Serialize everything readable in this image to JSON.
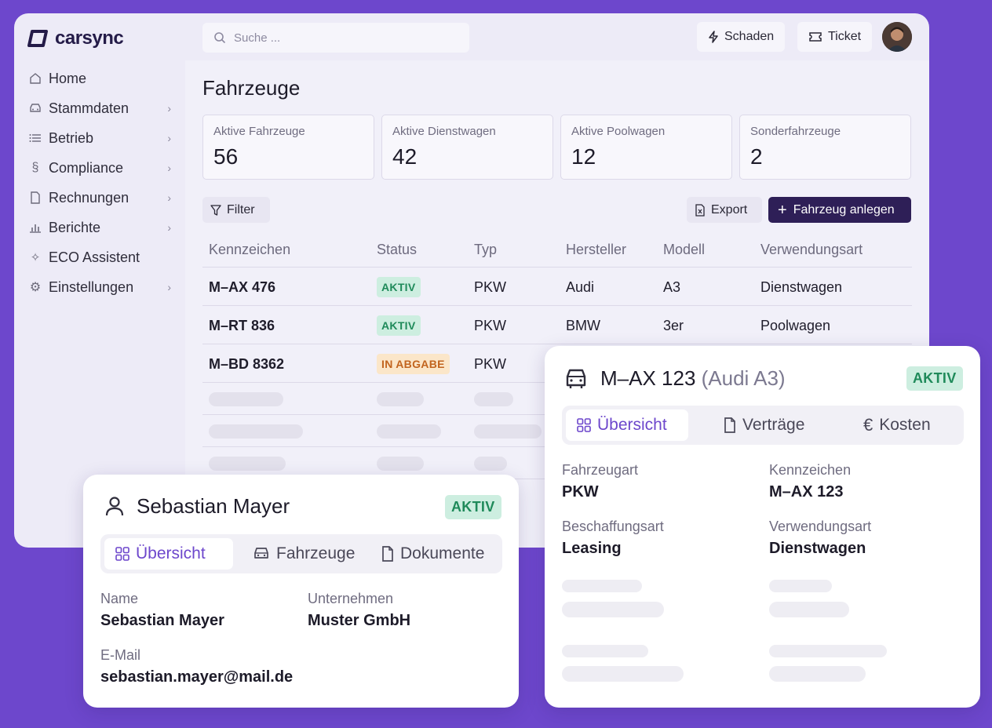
{
  "brand": {
    "name": "carsync"
  },
  "search": {
    "placeholder": "Suche ..."
  },
  "topbar": {
    "damage_label": "Schaden",
    "ticket_label": "Ticket"
  },
  "sidebar": {
    "items": [
      {
        "label": "Home",
        "icon": "home-icon",
        "has_chevron": false
      },
      {
        "label": "Stammdaten",
        "icon": "car-icon",
        "has_chevron": true
      },
      {
        "label": "Betrieb",
        "icon": "list-icon",
        "has_chevron": true
      },
      {
        "label": "Compliance",
        "icon": "paragraph-icon",
        "has_chevron": true
      },
      {
        "label": "Rechnungen",
        "icon": "document-icon",
        "has_chevron": true
      },
      {
        "label": "Berichte",
        "icon": "bar-chart-icon",
        "has_chevron": true
      },
      {
        "label": "ECO Assistent",
        "icon": "sparkle-icon",
        "has_chevron": false
      },
      {
        "label": "Einstellungen",
        "icon": "gear-icon",
        "has_chevron": true
      }
    ]
  },
  "main": {
    "title": "Fahrzeuge",
    "stats": [
      {
        "label": "Aktive Fahrzeuge",
        "value": "56"
      },
      {
        "label": "Aktive Dienstwagen",
        "value": "42"
      },
      {
        "label": "Aktive Poolwagen",
        "value": "12"
      },
      {
        "label": "Sonderfahrzeuge",
        "value": "2"
      }
    ],
    "filter_label": "Filter",
    "export_label": "Export",
    "add_label": "Fahrzeug anlegen",
    "columns": [
      "Kennzeichen",
      "Status",
      "Typ",
      "Hersteller",
      "Modell",
      "Verwendungsart"
    ],
    "rows": [
      {
        "plate": "M–AX 476",
        "status": "AKTIV",
        "type": "PKW",
        "maker": "Audi",
        "model": "A3",
        "usage": "Dienstwagen"
      },
      {
        "plate": "M–RT 836",
        "status": "AKTIV",
        "type": "PKW",
        "maker": "BMW",
        "model": "3er",
        "usage": "Poolwagen"
      },
      {
        "plate": "M–BD 8362",
        "status": "IN ABGABE",
        "type": "PKW"
      }
    ]
  },
  "person_card": {
    "name": "Sebastian Mayer",
    "status": "AKTIV",
    "tabs": [
      "Übersicht",
      "Fahrzeuge",
      "Dokumente"
    ],
    "fields": {
      "name_label": "Name",
      "name_value": "Sebastian Mayer",
      "company_label": "Unternehmen",
      "company_value": "Muster GmbH",
      "email_label": "E-Mail",
      "email_value": "sebastian.mayer@mail.de"
    }
  },
  "vehicle_card": {
    "plate": "M–AX 123",
    "model": "(Audi A3)",
    "status": "AKTIV",
    "tabs": [
      "Übersicht",
      "Verträge",
      "Kosten"
    ],
    "fields": {
      "kind_label": "Fahrzeugart",
      "kind_value": "PKW",
      "plate_label": "Kennzeichen",
      "plate_value": "M–AX 123",
      "procurement_label": "Beschaffungsart",
      "procurement_value": "Leasing",
      "usage_label": "Verwendungsart",
      "usage_value": "Dienstwagen"
    }
  },
  "colors": {
    "background": "#6d47cc",
    "accent": "#6d47cc",
    "primary_button": "#2e1f57",
    "status_active": "#1f8a5a",
    "status_handover": "#c2641e"
  }
}
